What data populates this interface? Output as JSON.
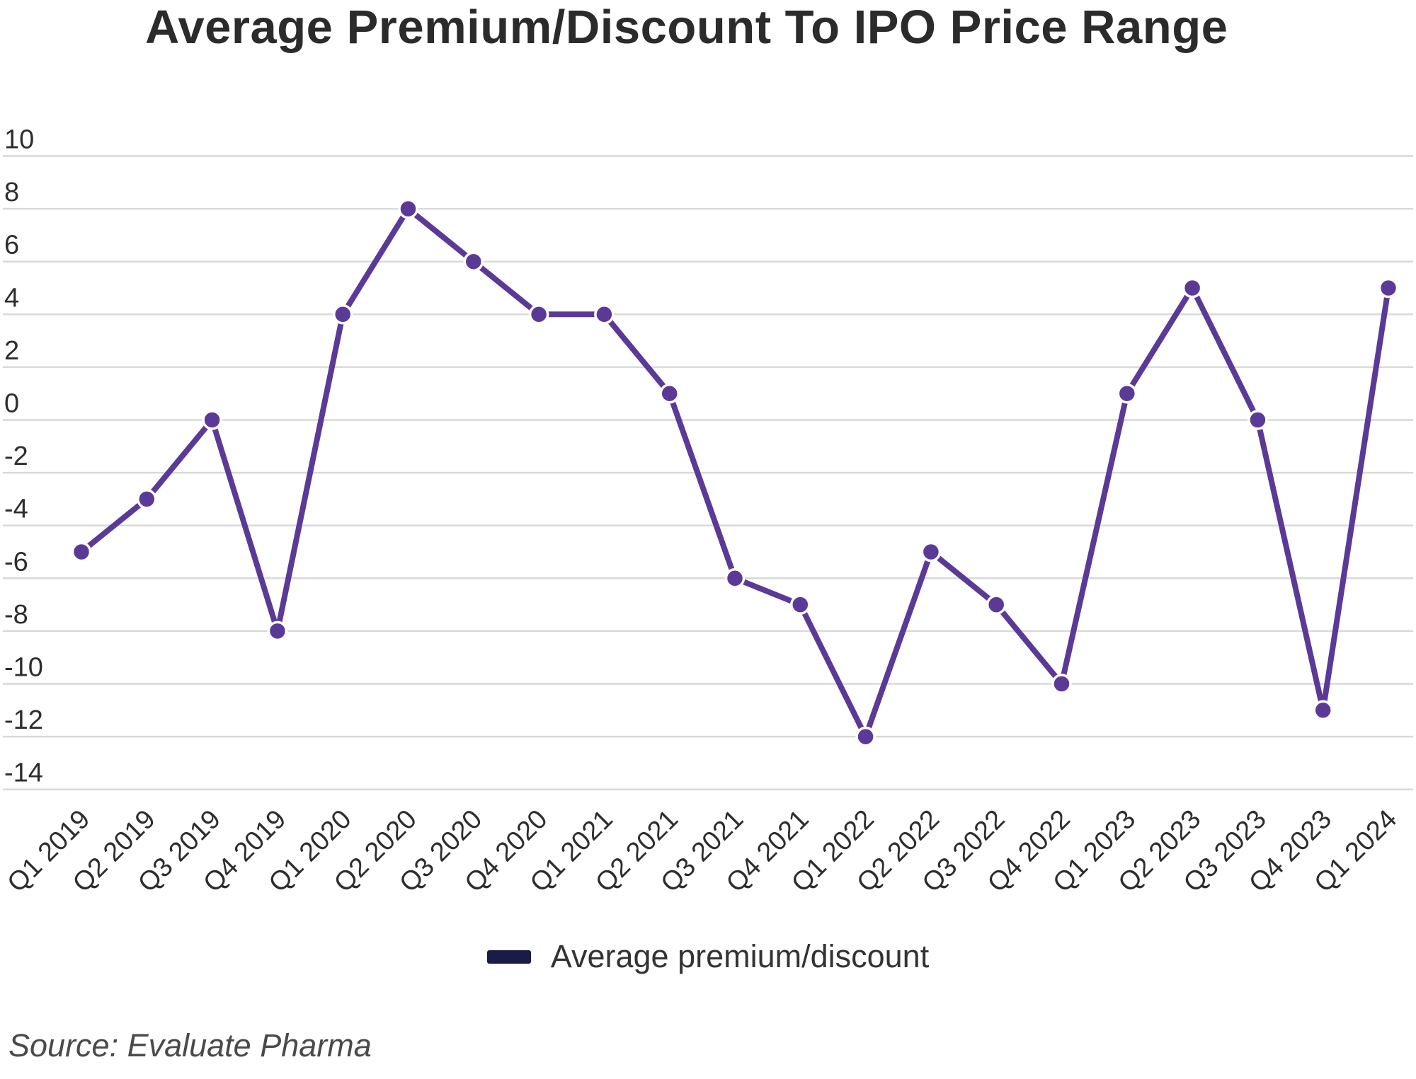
{
  "title": "Average Premium/Discount To IPO Price Range",
  "source": "Source: Evaluate Pharma",
  "legend": {
    "label": "Average premium/discount",
    "swatch_color": "#1b1b47"
  },
  "chart_data": {
    "type": "line",
    "title": "Average Premium/Discount To IPO Price Range",
    "xlabel": "",
    "ylabel": "",
    "categories": [
      "Q1 2019",
      "Q2 2019",
      "Q3 2019",
      "Q4 2019",
      "Q1 2020",
      "Q2 2020",
      "Q3 2020",
      "Q4 2020",
      "Q1 2021",
      "Q2 2021",
      "Q3 2021",
      "Q4 2021",
      "Q1 2022",
      "Q2 2022",
      "Q3 2022",
      "Q4 2022",
      "Q1 2023",
      "Q2 2023",
      "Q3 2023",
      "Q4 2023",
      "Q1 2024"
    ],
    "series": [
      {
        "name": "Average premium/discount",
        "values": [
          -5,
          -3,
          0,
          -8,
          4,
          8,
          6,
          4,
          4,
          1,
          -6,
          -7,
          -12,
          -5,
          -7,
          -10,
          1,
          5,
          0,
          -11,
          5
        ],
        "color": "#5b3a97"
      }
    ],
    "ylim": [
      -14,
      10
    ],
    "yticks": [
      10,
      8,
      6,
      4,
      2,
      0,
      -2,
      -4,
      -6,
      -8,
      -10,
      -12,
      -14
    ],
    "grid": true,
    "legend_position": "bottom",
    "colors": {
      "gridline": "#d9d9d9",
      "axis_text": "#2d2d2d",
      "line": "#5b3a97"
    }
  }
}
